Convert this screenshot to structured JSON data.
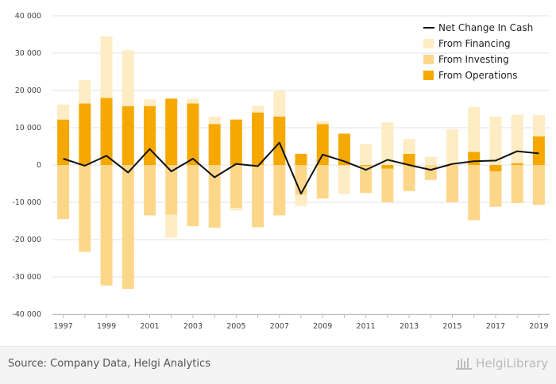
{
  "chart_data": {
    "type": "bar",
    "title": "",
    "xlabel": "",
    "ylabel": "",
    "ylim": [
      -40000,
      40000
    ],
    "yticks": [
      40000,
      30000,
      20000,
      10000,
      0,
      -10000,
      -20000,
      -30000,
      -40000
    ],
    "ytick_labels": [
      "40 000",
      "30 000",
      "20 000",
      "10 000",
      "0",
      "-10 000",
      "-20 000",
      "-30 000",
      "-40 000"
    ],
    "xtick_labels": [
      "1997",
      "1999",
      "2001",
      "2003",
      "2005",
      "2007",
      "2009",
      "2011",
      "2013",
      "2015",
      "2017",
      "2019"
    ],
    "categories": [
      "1997",
      "1998",
      "1999",
      "2000",
      "2001",
      "2002",
      "2003",
      "2004",
      "2005",
      "2006",
      "2007",
      "2008",
      "2009",
      "2010",
      "2011",
      "2012",
      "2013",
      "2014",
      "2015",
      "2016",
      "2017",
      "2018",
      "2019"
    ],
    "series": [
      {
        "name": "From Operations",
        "color": "#f5a800",
        "values": [
          12200,
          16500,
          18000,
          15800,
          15800,
          17800,
          16500,
          11000,
          12200,
          14100,
          13000,
          3000,
          11000,
          8400,
          -200,
          -1000,
          3000,
          0,
          0,
          3500,
          -1700,
          500,
          7700
        ]
      },
      {
        "name": "From Investing",
        "color": "#fcd78a",
        "values": [
          -14500,
          -23300,
          -32300,
          -33200,
          -13500,
          -13300,
          -16400,
          -16800,
          -11500,
          -16700,
          -13500,
          -8000,
          -9000,
          -200,
          -7300,
          -9000,
          -7000,
          -4000,
          -10000,
          -14800,
          -9500,
          -10200,
          -10700
        ]
      },
      {
        "name": "From Financing",
        "color": "#fdecc4",
        "values": [
          4000,
          6300,
          16500,
          15000,
          1800,
          -6200,
          1300,
          2000,
          -700,
          1800,
          6800,
          -3000,
          700,
          -7600,
          5600,
          11400,
          4000,
          2200,
          9600,
          12100,
          13000,
          13000,
          5700
        ]
      },
      {
        "name": "Net Change In Cash",
        "color": "#111111",
        "type": "line",
        "values": [
          1700,
          -200,
          2500,
          -2000,
          4300,
          -1700,
          1700,
          -3300,
          300,
          -300,
          6000,
          -7700,
          2800,
          1000,
          -1300,
          1400,
          0,
          -1300,
          300,
          1000,
          1200,
          3700,
          3100
        ]
      }
    ],
    "legend": [
      "Net Change In Cash",
      "From Financing",
      "From Investing",
      "From Operations"
    ],
    "legend_position": "top-right",
    "grid": true
  },
  "footer": {
    "source": "Source: Company Data, Helgi Analytics",
    "brand": "HelgiLibrary"
  }
}
